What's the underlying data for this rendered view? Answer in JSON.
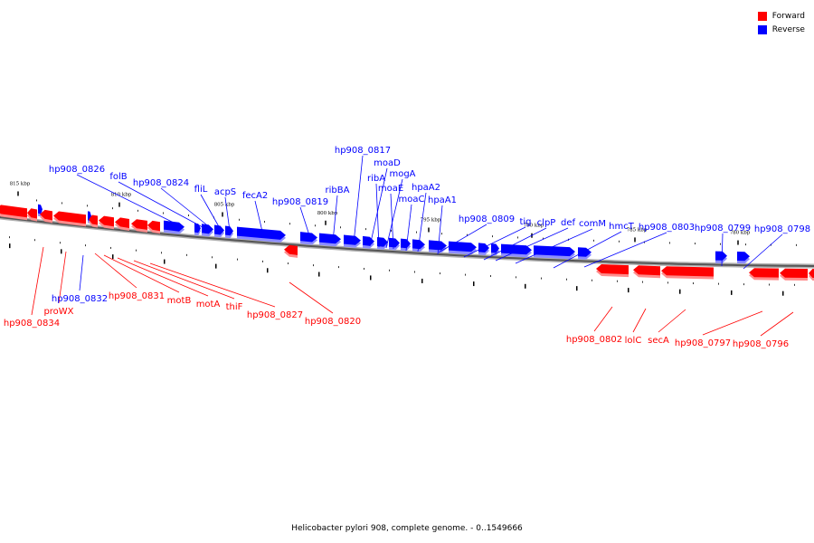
{
  "legend": {
    "forward_label": "Forward",
    "reverse_label": "Reverse",
    "forward_color": "#ff0000",
    "reverse_color": "#0000ff"
  },
  "caption": "Helicobacter pylori 908, complete genome. - 0..1549666",
  "scale_ticks": [
    "815 kbp",
    "810 kbp",
    "805 kbp",
    "800 kbp",
    "795 kbp",
    "790 kbp",
    "785 kbp",
    "780 kbp"
  ],
  "genes_reverse": [
    "hp908_0826",
    "folB",
    "hp908_0824",
    "fliL",
    "acpS",
    "fecA2",
    "hp908_0819",
    "ribBA",
    "hp908_0817",
    "moaD",
    "ribA",
    "mogA",
    "moaE",
    "moaC",
    "hpaA2",
    "hpaA1",
    "hp908_0809",
    "tig",
    "clpP",
    "def",
    "comM",
    "hmcT",
    "hp908_0803",
    "hp908_0799",
    "hp908_0798",
    "hp908_0832"
  ],
  "genes_forward": [
    "hp908_0834",
    "proWX",
    "hp908_0831",
    "motB",
    "motA",
    "thiF",
    "hp908_0827",
    "hp908_0820",
    "hp908_0802",
    "lolC",
    "secA",
    "hp908_0797",
    "hp908_0796"
  ]
}
